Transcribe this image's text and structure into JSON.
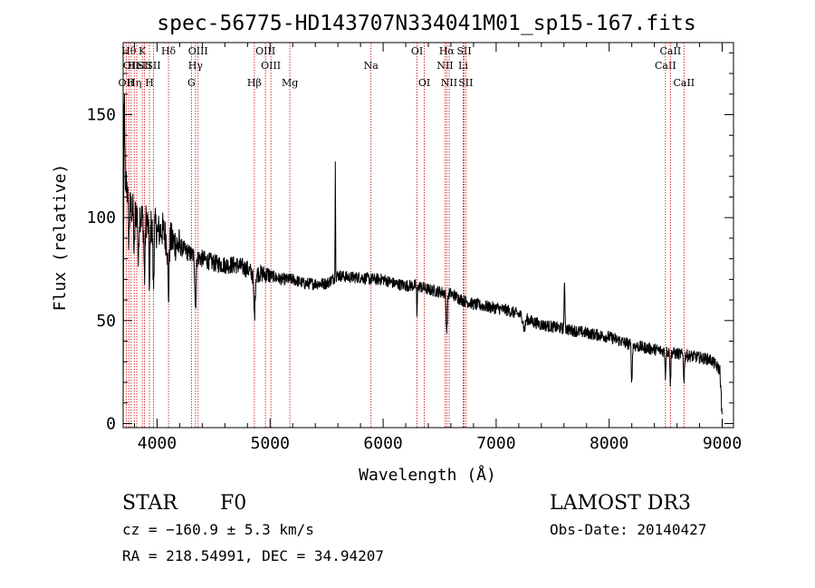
{
  "chart_data": {
    "type": "line",
    "title": "spec-56775-HD143707N334041M01_sp15-167.fits",
    "xlabel": "Wavelength (Å)",
    "ylabel": "Flux (relative)",
    "xlim": [
      3700,
      9100
    ],
    "ylim": [
      -2,
      185
    ],
    "x_ticks": [
      4000,
      5000,
      6000,
      7000,
      8000,
      9000
    ],
    "y_ticks": [
      0,
      50,
      100,
      150
    ],
    "series": [
      {
        "name": "flux",
        "anchors": [
          [
            3700,
            5
          ],
          [
            3705,
            140
          ],
          [
            3712,
            160
          ],
          [
            3720,
            125
          ],
          [
            3740,
            112
          ],
          [
            3760,
            105
          ],
          [
            3800,
            103
          ],
          [
            3850,
            102
          ],
          [
            3880,
            98
          ],
          [
            3900,
            100
          ],
          [
            3930,
            95
          ],
          [
            3960,
            96
          ],
          [
            3980,
            97
          ],
          [
            4000,
            93
          ],
          [
            4050,
            94
          ],
          [
            4080,
            90
          ],
          [
            4100,
            90
          ],
          [
            4150,
            88
          ],
          [
            4200,
            86
          ],
          [
            4250,
            84
          ],
          [
            4300,
            82
          ],
          [
            4350,
            81
          ],
          [
            4400,
            80
          ],
          [
            4450,
            79
          ],
          [
            4500,
            78
          ],
          [
            4600,
            77
          ],
          [
            4700,
            77
          ],
          [
            4800,
            75
          ],
          [
            4860,
            72
          ],
          [
            4900,
            73
          ],
          [
            5000,
            72
          ],
          [
            5100,
            70
          ],
          [
            5200,
            70
          ],
          [
            5300,
            68
          ],
          [
            5400,
            68
          ],
          [
            5500,
            68
          ],
          [
            5600,
            72
          ],
          [
            5700,
            71
          ],
          [
            5800,
            71
          ],
          [
            5900,
            70
          ],
          [
            6000,
            70
          ],
          [
            6100,
            68
          ],
          [
            6200,
            67
          ],
          [
            6300,
            67
          ],
          [
            6400,
            65
          ],
          [
            6500,
            64
          ],
          [
            6600,
            63
          ],
          [
            6700,
            60
          ],
          [
            6800,
            58
          ],
          [
            6900,
            57
          ],
          [
            7000,
            56
          ],
          [
            7100,
            55
          ],
          [
            7200,
            53
          ],
          [
            7300,
            50
          ],
          [
            7400,
            48
          ],
          [
            7500,
            47
          ],
          [
            7600,
            46
          ],
          [
            7700,
            45
          ],
          [
            7800,
            44
          ],
          [
            7900,
            43
          ],
          [
            8000,
            42
          ],
          [
            8100,
            40
          ],
          [
            8200,
            38
          ],
          [
            8300,
            37
          ],
          [
            8400,
            36
          ],
          [
            8500,
            35
          ],
          [
            8600,
            34
          ],
          [
            8700,
            33
          ],
          [
            8800,
            32
          ],
          [
            8900,
            31
          ],
          [
            8980,
            26
          ],
          [
            9000,
            2
          ]
        ],
        "features": [
          {
            "center": 3720,
            "depth": -18,
            "width": 6
          },
          {
            "center": 3750,
            "depth": -20,
            "width": 6
          },
          {
            "center": 3798,
            "depth": -22,
            "width": 6
          },
          {
            "center": 3835,
            "depth": -25,
            "width": 6
          },
          {
            "center": 3889,
            "depth": -28,
            "width": 7
          },
          {
            "center": 3933,
            "depth": -30,
            "width": 6
          },
          {
            "center": 3968,
            "depth": -30,
            "width": 7
          },
          {
            "center": 4101,
            "depth": -28,
            "width": 8
          },
          {
            "center": 4340,
            "depth": -25,
            "width": 8
          },
          {
            "center": 4861,
            "depth": -20,
            "width": 9
          },
          {
            "center": 5577,
            "depth": 55,
            "width": 3
          },
          {
            "center": 6300,
            "depth": -16,
            "width": 4
          },
          {
            "center": 6563,
            "depth": -18,
            "width": 8
          },
          {
            "center": 7605,
            "depth": 20,
            "width": 6
          },
          {
            "center": 7250,
            "depth": -6,
            "width": 12
          },
          {
            "center": 8200,
            "depth": -18,
            "width": 6
          },
          {
            "center": 8498,
            "depth": -12,
            "width": 5
          },
          {
            "center": 8542,
            "depth": -16,
            "width": 5
          },
          {
            "center": 8662,
            "depth": -14,
            "width": 5
          }
        ]
      }
    ],
    "lines": [
      {
        "x": 3727,
        "label": "OII",
        "row": 2
      },
      {
        "x": 3750,
        "label": "Hθ",
        "row": 0
      },
      {
        "x": 3770,
        "label": "OII",
        "row": 1
      },
      {
        "x": 3798,
        "label": "Hη",
        "row": 2
      },
      {
        "x": 3820,
        "label": "HeI",
        "row": 1
      },
      {
        "x": 3869,
        "label": "K",
        "row": 0
      },
      {
        "x": 3889,
        "label": "SII",
        "row": 1
      },
      {
        "x": 3933,
        "label": "H",
        "row": 2
      },
      {
        "x": 3968,
        "label": "SII",
        "row": 1
      },
      {
        "x": 4101,
        "label": "Hδ",
        "row": 0
      },
      {
        "x": 4304,
        "label": "G",
        "row": 2
      },
      {
        "x": 4340,
        "label": "Hγ",
        "row": 1
      },
      {
        "x": 4363,
        "label": "OIII",
        "row": 0
      },
      {
        "x": 4861,
        "label": "Hβ",
        "row": 2
      },
      {
        "x": 4959,
        "label": "OIII",
        "row": 0
      },
      {
        "x": 5007,
        "label": "OIII",
        "row": 1
      },
      {
        "x": 5175,
        "label": "Mg",
        "row": 2
      },
      {
        "x": 5893,
        "label": "Na",
        "row": 1
      },
      {
        "x": 6300,
        "label": "OI",
        "row": 0
      },
      {
        "x": 6364,
        "label": "OI",
        "row": 2
      },
      {
        "x": 6548,
        "label": "NII",
        "row": 1
      },
      {
        "x": 6563,
        "label": "Hα",
        "row": 0
      },
      {
        "x": 6584,
        "label": "NII",
        "row": 2
      },
      {
        "x": 6708,
        "label": "Li",
        "row": 1
      },
      {
        "x": 6717,
        "label": "SII",
        "row": 0
      },
      {
        "x": 6731,
        "label": "SII",
        "row": 2
      },
      {
        "x": 8498,
        "label": "CaII",
        "row": 1
      },
      {
        "x": 8542,
        "label": "CaII",
        "row": 0
      },
      {
        "x": 8662,
        "label": "CaII",
        "row": 2
      }
    ],
    "colors": {
      "spectrum": "#000000",
      "line_marker": "#cc0000"
    }
  },
  "info": {
    "class_label": "STAR",
    "subclass": "F0",
    "survey": "LAMOST DR3",
    "cz": "cz = −160.9 ± 5.3 km/s",
    "obs_date": "Obs-Date: 20140427",
    "coords": "RA = 218.54991, DEC =  34.94207"
  }
}
